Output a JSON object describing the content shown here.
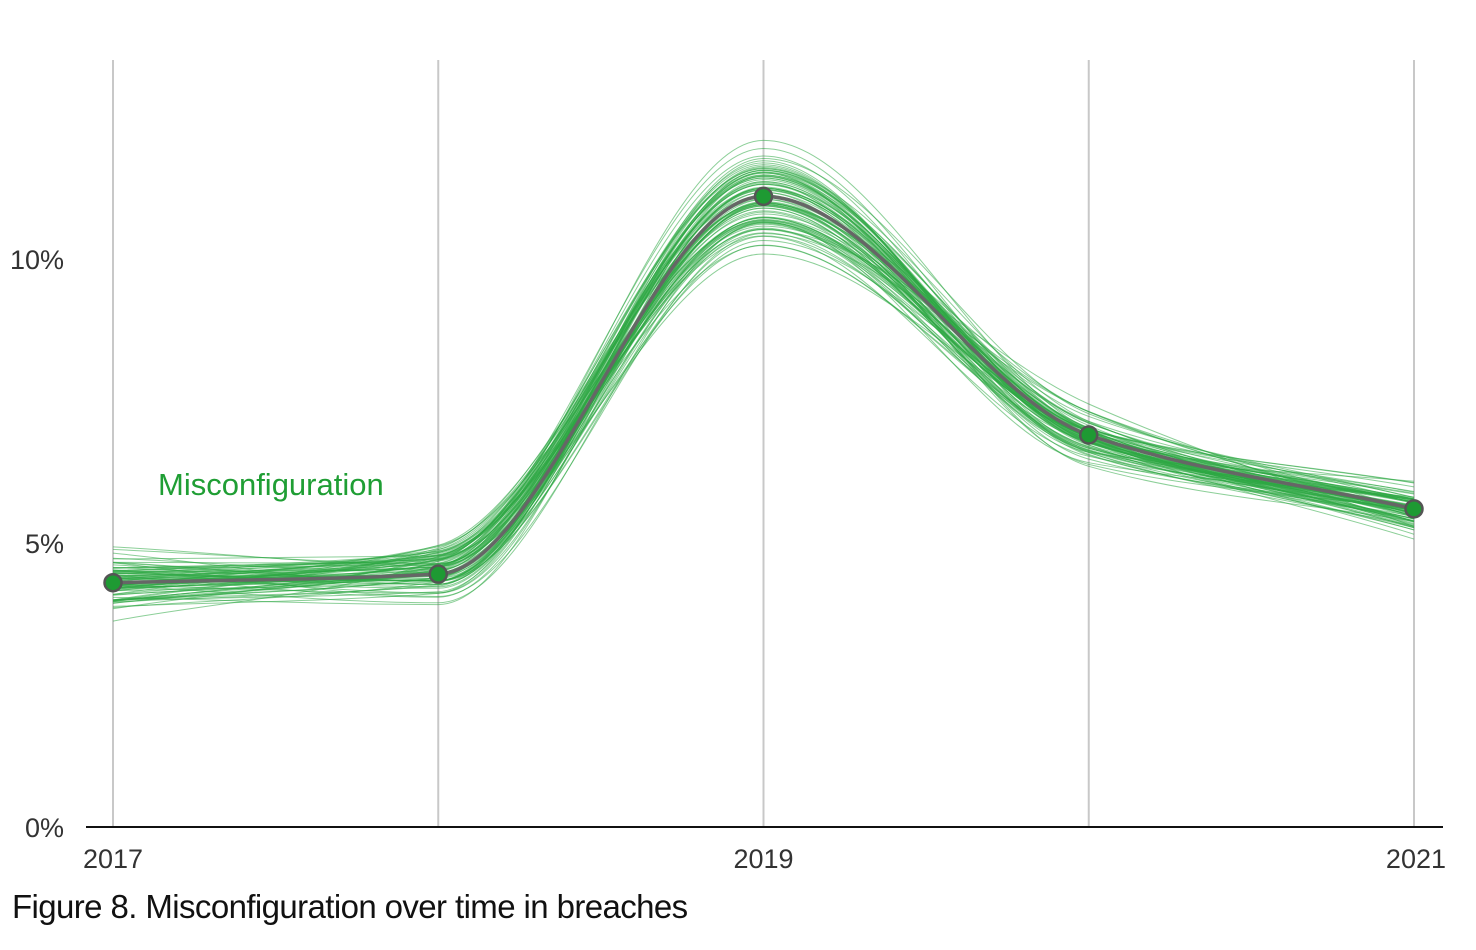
{
  "caption": "Figure 8. Misconfiguration over time in breaches",
  "colors": {
    "series": "#1f9e34",
    "ensemble": "#2ea843",
    "median_line": "#666666",
    "point_fill": "#1e9a33",
    "point_stroke": "#555555",
    "gridline": "#c8c8c8",
    "axis": "#111111"
  },
  "chart_data": {
    "type": "line",
    "title": "Figure 8. Misconfiguration over time in breaches",
    "xlabel": "",
    "ylabel": "",
    "x": [
      2017,
      2018,
      2019,
      2020,
      2021
    ],
    "x_tick_labels": [
      "2017",
      "2019",
      "2021"
    ],
    "x_tick_values": [
      2017,
      2019,
      2021
    ],
    "y_tick_labels": [
      "0%",
      "5%",
      "10%"
    ],
    "y_tick_values": [
      0,
      5,
      10
    ],
    "ylim": [
      0,
      13.5
    ],
    "xlim": [
      2017,
      2021
    ],
    "grid": "vertical at each year",
    "series": [
      {
        "name": "Misconfiguration",
        "values": [
          4.3,
          4.45,
          11.1,
          6.9,
          5.6
        ],
        "ensemble": {
          "count": 90,
          "spread_low": [
            3.2,
            3.2,
            9.8,
            6.0,
            4.6
          ],
          "spread_high": [
            5.5,
            5.4,
            13.4,
            7.9,
            6.5
          ]
        }
      }
    ]
  }
}
